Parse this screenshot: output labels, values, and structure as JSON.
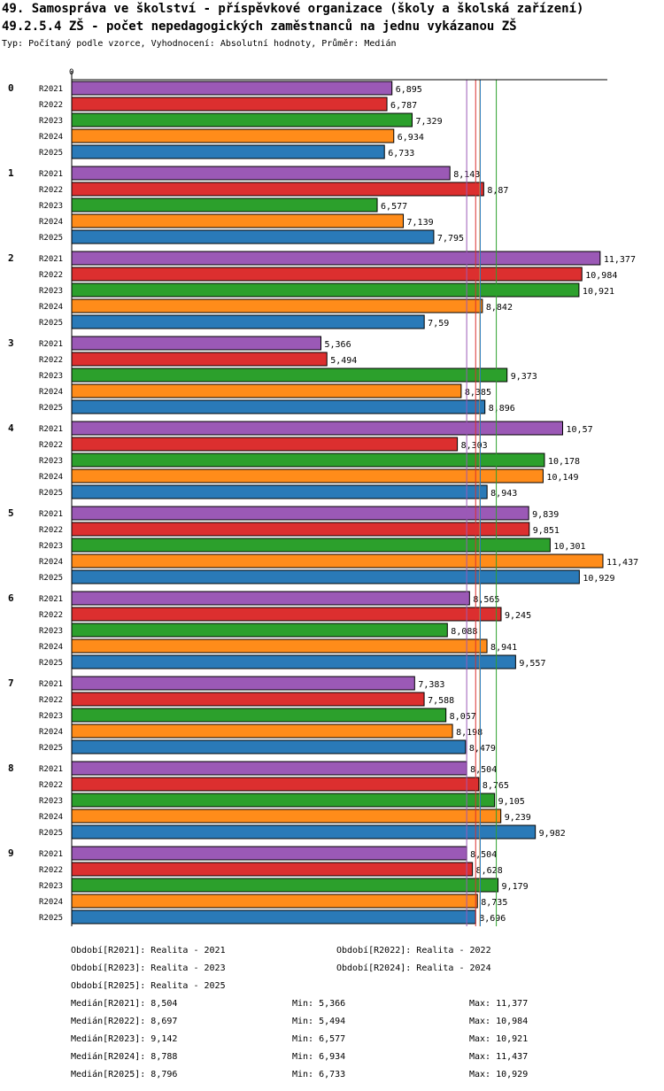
{
  "header": {
    "title_line1": "49. Samospráva ve školství - příspěvkové organizace (školy a školská zařízení)",
    "title_line2": "49.2.5.4 ZŠ - počet nepedagogických zaměstnanců na jednu vykázanou ZŠ",
    "subtitle": "Typ: Počítaný podle vzorce, Vyhodnocení: Absolutní hodnoty, Průměr: Medián"
  },
  "colors": {
    "R2021": "#9b59b6",
    "R2022": "#dc2f2f",
    "R2023": "#2ca02c",
    "R2024": "#ff8c1a",
    "R2025": "#2a7ab8"
  },
  "chart_data": {
    "type": "bar",
    "orientation": "horizontal",
    "axis_zero_label": "0",
    "xlim": [
      0,
      11.437
    ],
    "series_names": [
      "R2021",
      "R2022",
      "R2023",
      "R2024",
      "R2025"
    ],
    "groups": [
      {
        "label": "0",
        "values": [
          6.895,
          6.787,
          7.329,
          6.934,
          6.733
        ],
        "labels": [
          "6,895",
          "6,787",
          "7,329",
          "6,934",
          "6,733"
        ]
      },
      {
        "label": "1",
        "values": [
          8.143,
          8.87,
          6.577,
          7.139,
          7.795
        ],
        "labels": [
          "8,143",
          "8,87",
          "6,577",
          "7,139",
          "7,795"
        ]
      },
      {
        "label": "2",
        "values": [
          11.377,
          10.984,
          10.921,
          8.842,
          7.59
        ],
        "labels": [
          "11,377",
          "10,984",
          "10,921",
          "8,842",
          "7,59"
        ]
      },
      {
        "label": "3",
        "values": [
          5.366,
          5.494,
          9.373,
          8.385,
          8.896
        ],
        "labels": [
          "5,366",
          "5,494",
          "9,373",
          "8,385",
          "8,896"
        ]
      },
      {
        "label": "4",
        "values": [
          10.57,
          8.303,
          10.178,
          10.149,
          8.943
        ],
        "labels": [
          "10,57",
          "8,303",
          "10,178",
          "10,149",
          "8,943"
        ]
      },
      {
        "label": "5",
        "values": [
          9.839,
          9.851,
          10.301,
          11.437,
          10.929
        ],
        "labels": [
          "9,839",
          "9,851",
          "10,301",
          "11,437",
          "10,929"
        ]
      },
      {
        "label": "6",
        "values": [
          8.565,
          9.245,
          8.088,
          8.941,
          9.557
        ],
        "labels": [
          "8,565",
          "9,245",
          "8,088",
          "8,941",
          "9,557"
        ]
      },
      {
        "label": "7",
        "values": [
          7.383,
          7.588,
          8.057,
          8.198,
          8.479
        ],
        "labels": [
          "7,383",
          "7,588",
          "8,057",
          "8,198",
          "8,479"
        ]
      },
      {
        "label": "8",
        "values": [
          8.504,
          8.765,
          9.105,
          9.239,
          9.982
        ],
        "labels": [
          "8,504",
          "8,765",
          "9,105",
          "9,239",
          "9,982"
        ]
      },
      {
        "label": "9",
        "values": [
          8.504,
          8.628,
          9.179,
          8.735,
          8.696
        ],
        "labels": [
          "8,504",
          "8,628",
          "9,179",
          "8,735",
          "8,696"
        ]
      }
    ],
    "medians": [
      8.504,
      8.697,
      9.142,
      8.788,
      8.796
    ]
  },
  "legend": {
    "periods": [
      "Období[R2021]: Realita - 2021",
      "Období[R2022]: Realita - 2022",
      "Období[R2023]: Realita - 2023",
      "Období[R2024]: Realita - 2024",
      "Období[R2025]: Realita - 2025"
    ],
    "stats": [
      {
        "median": "Medián[R2021]: 8,504",
        "min": "Min: 5,366",
        "max": "Max: 11,377"
      },
      {
        "median": "Medián[R2022]: 8,697",
        "min": "Min: 5,494",
        "max": "Max: 10,984"
      },
      {
        "median": "Medián[R2023]: 9,142",
        "min": "Min: 6,577",
        "max": "Max: 10,921"
      },
      {
        "median": "Medián[R2024]: 8,788",
        "min": "Min: 6,934",
        "max": "Max: 11,437"
      },
      {
        "median": "Medián[R2025]: 8,796",
        "min": "Min: 6,733",
        "max": "Max: 10,929"
      }
    ]
  }
}
